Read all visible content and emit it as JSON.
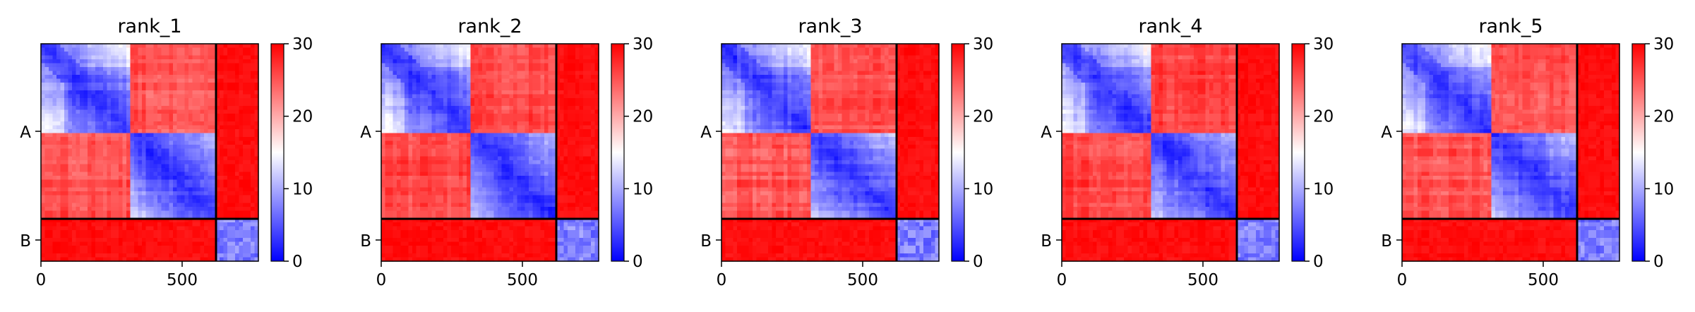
{
  "chart_data": {
    "type": "heatmap",
    "colormap": {
      "name": "bwr",
      "colors": [
        "#0000ff",
        "#ffffff",
        "#ff0000"
      ],
      "vmin": 0,
      "vmax": 30
    },
    "colorbar_ticks": [
      0,
      10,
      20,
      30
    ],
    "chains": [
      {
        "label": "A",
        "length": 620
      },
      {
        "label": "B",
        "length": 150
      }
    ],
    "x_ticks": [
      0,
      500
    ],
    "domains": [
      {
        "chain": "A",
        "start": 0,
        "end": 310
      },
      {
        "chain": "A",
        "start": 310,
        "end": 620
      },
      {
        "chain": "B",
        "start": 620,
        "end": 770
      }
    ],
    "panels": [
      {
        "title": "rank_1",
        "inter_domain_pae": 25,
        "inter_chain_pae": 29
      },
      {
        "title": "rank_2",
        "inter_domain_pae": 26,
        "inter_chain_pae": 29
      },
      {
        "title": "rank_3",
        "inter_domain_pae": 25,
        "inter_chain_pae": 29
      },
      {
        "title": "rank_4",
        "inter_domain_pae": 26,
        "inter_chain_pae": 29
      },
      {
        "title": "rank_5",
        "inter_domain_pae": 25,
        "inter_chain_pae": 29
      }
    ]
  }
}
